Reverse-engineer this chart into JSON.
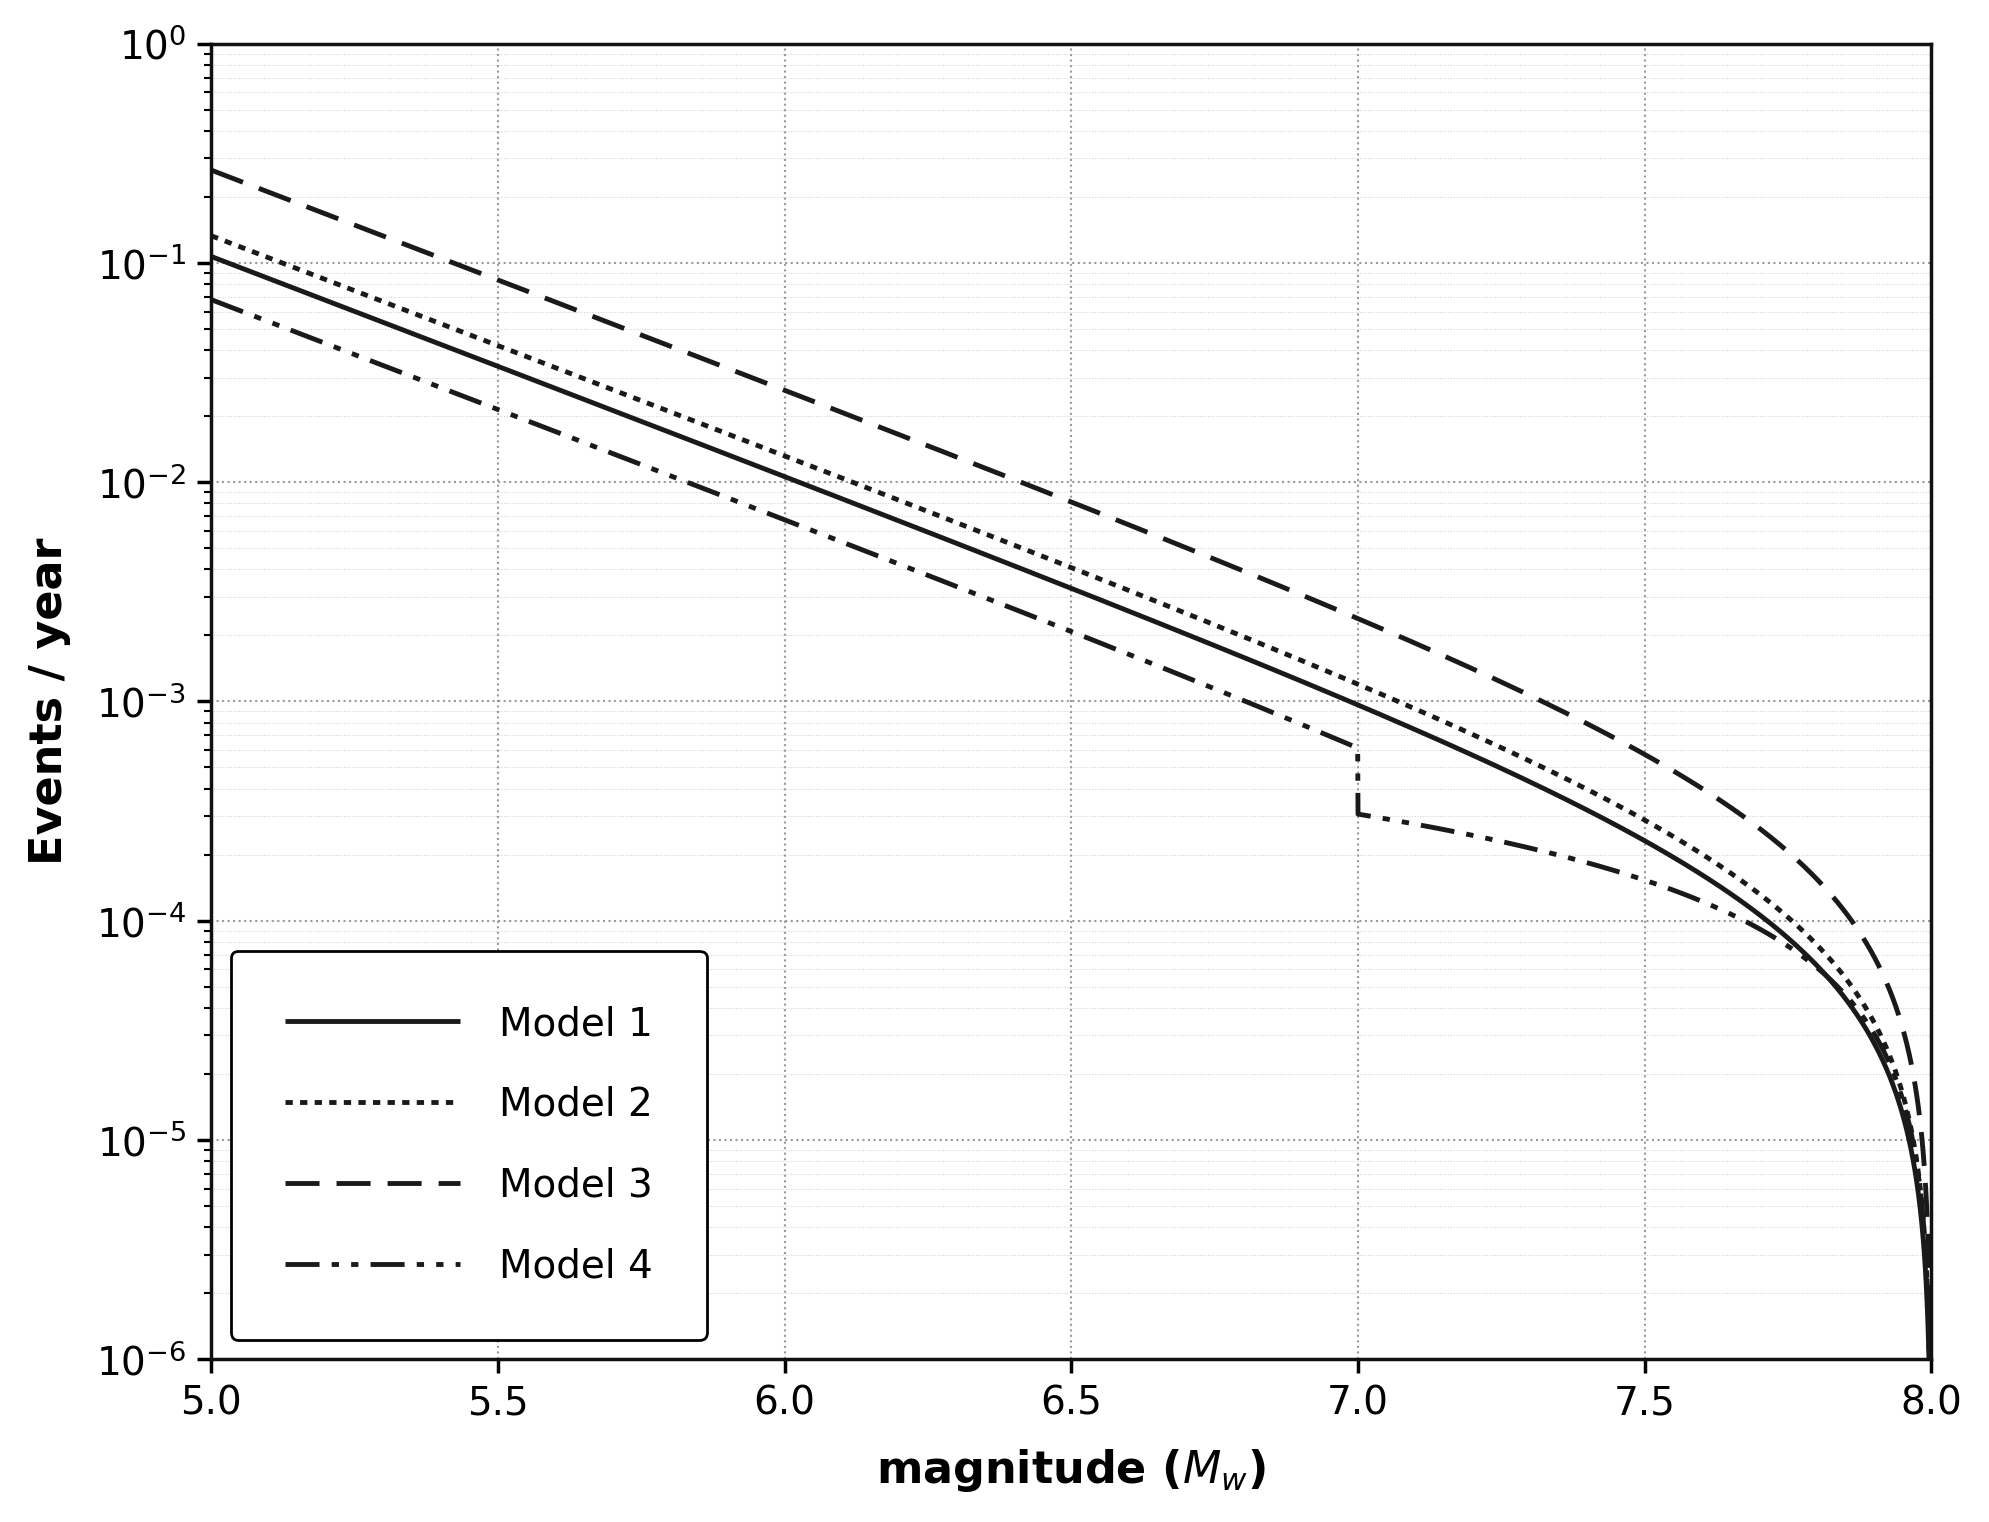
{
  "title": "",
  "xlabel": "magnitude ($M_w$)",
  "ylabel": "Events / year",
  "xlim": [
    5.0,
    8.0
  ],
  "ylim_log": [
    -6,
    0
  ],
  "mmin": 5.0,
  "mmax": 8.0,
  "b": 1.0,
  "line_color": "#1a1a1a",
  "bg_color": "#ffffff",
  "fontsize_label": 32,
  "fontsize_tick": 28,
  "fontsize_legend": 28,
  "linewidth": 3.2,
  "models": [
    {
      "label": "Model 1",
      "C": 0.107,
      "ls": "solid",
      "lw": 3.5,
      "type": "GR"
    },
    {
      "label": "Model 2",
      "C": 0.133,
      "ls": "dotted",
      "lw": 3.5,
      "type": "GR"
    },
    {
      "label": "Model 3",
      "C": 0.265,
      "ls": "dashed",
      "lw": 3.5,
      "type": "GR"
    },
    {
      "label": "Model 4",
      "C": 0.068,
      "ls": "dashdot",
      "lw": 3.5,
      "type": "YC"
    }
  ]
}
